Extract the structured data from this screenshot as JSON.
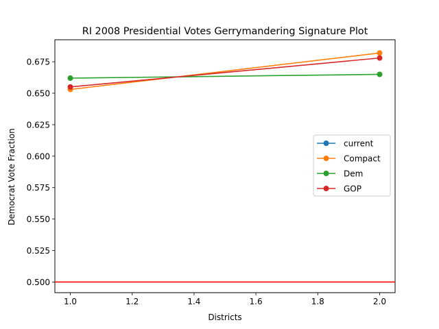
{
  "chart_data": {
    "type": "line",
    "title": "RI 2008 Presidential Votes Gerrymandering Signature Plot",
    "xlabel": "Districts",
    "ylabel": "Democrat Vote Fraction",
    "xlim": [
      0.95,
      2.05
    ],
    "ylim": [
      0.4915,
      0.6925
    ],
    "xticks": [
      "1.0",
      "1.2",
      "1.4",
      "1.6",
      "1.8",
      "2.0"
    ],
    "yticks": [
      "0.500",
      "0.525",
      "0.550",
      "0.575",
      "0.600",
      "0.625",
      "0.650",
      "0.675"
    ],
    "grid": false,
    "legend_position": "center-right",
    "x": [
      1,
      2
    ],
    "series": [
      {
        "name": "current",
        "color": "#1f77b4",
        "values": [
          null,
          null
        ]
      },
      {
        "name": "Compact",
        "color": "#ff7f0e",
        "values": [
          0.653,
          0.682
        ]
      },
      {
        "name": "Dem",
        "color": "#2ca02c",
        "values": [
          0.662,
          0.665
        ]
      },
      {
        "name": "GOP",
        "color": "#d62728",
        "values": [
          0.655,
          0.678
        ]
      }
    ],
    "reference_line": {
      "y": 0.5,
      "color": "#ff0000"
    }
  }
}
